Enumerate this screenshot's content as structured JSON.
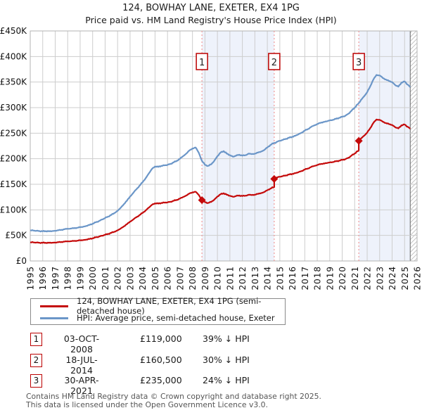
{
  "header": {
    "title": "124, BOWHAY LANE, EXETER, EX4 1PG",
    "subtitle": "Price paid vs. HM Land Registry's House Price Index (HPI)"
  },
  "colors": {
    "price_line": "#c40a0a",
    "hpi_line": "#6b96c8",
    "ownership_band": "#eef2fb",
    "dashed_sale_line": "#f09a9a",
    "marker_box_border": "#bb0000",
    "grid": "#cdcdcd",
    "plot_border": "#b3b3b3",
    "hatch_line": "#c4c4c4",
    "hatch_edge": "#666666",
    "diamond": "#c40a0a"
  },
  "chart_data": {
    "type": "line",
    "title": "Price paid vs. HM Land Registry's House Price Index (HPI)",
    "xlabel": "",
    "ylabel": "",
    "grid": true,
    "x_range": [
      1995,
      2026
    ],
    "y_max_k": 450,
    "y_ticks": [
      {
        "v": 0,
        "label": "£0"
      },
      {
        "v": 50,
        "label": "£50K"
      },
      {
        "v": 100,
        "label": "£100K"
      },
      {
        "v": 150,
        "label": "£150K"
      },
      {
        "v": 200,
        "label": "£200K"
      },
      {
        "v": 250,
        "label": "£250K"
      },
      {
        "v": 300,
        "label": "£300K"
      },
      {
        "v": 350,
        "label": "£350K"
      },
      {
        "v": 400,
        "label": "£400K"
      },
      {
        "v": 450,
        "label": "£450K"
      }
    ],
    "x_ticks": [
      1995,
      1996,
      1997,
      1998,
      1999,
      2000,
      2001,
      2002,
      2003,
      2004,
      2005,
      2006,
      2007,
      2008,
      2009,
      2010,
      2011,
      2012,
      2013,
      2014,
      2015,
      2016,
      2017,
      2018,
      2019,
      2020,
      2021,
      2022,
      2023,
      2024,
      2025,
      2026
    ],
    "unit": "GBP thousands",
    "ownership_bands": [
      {
        "from": 2008.76,
        "to": 2014.55
      },
      {
        "from": 2021.33,
        "to": 2025.45
      }
    ],
    "future_band": {
      "from": 2025.45,
      "to": 2026
    },
    "sales": [
      {
        "label": "1",
        "year": 2008.76,
        "price_k": 119
      },
      {
        "label": "2",
        "year": 2014.55,
        "price_k": 160.5
      },
      {
        "label": "3",
        "year": 2021.33,
        "price_k": 235
      }
    ],
    "series": [
      {
        "name": "HPI: Average price, semi-detached house, Exeter",
        "color": "#6b96c8",
        "points": [
          [
            1995,
            60
          ],
          [
            1995.25,
            59.5
          ],
          [
            1995.5,
            59
          ],
          [
            1995.75,
            58.5
          ],
          [
            1996,
            58
          ],
          [
            1996.25,
            58.5
          ],
          [
            1996.5,
            58
          ],
          [
            1996.75,
            58.5
          ],
          [
            1997,
            59
          ],
          [
            1997.25,
            60
          ],
          [
            1997.5,
            61
          ],
          [
            1997.75,
            62
          ],
          [
            1998,
            63
          ],
          [
            1998.25,
            63.5
          ],
          [
            1998.5,
            64
          ],
          [
            1998.75,
            65
          ],
          [
            1999,
            66
          ],
          [
            1999.25,
            67
          ],
          [
            1999.5,
            68.5
          ],
          [
            1999.75,
            70.5
          ],
          [
            2000,
            73
          ],
          [
            2000.25,
            75.5
          ],
          [
            2000.5,
            78
          ],
          [
            2000.75,
            81
          ],
          [
            2001,
            84
          ],
          [
            2001.25,
            87
          ],
          [
            2001.5,
            90
          ],
          [
            2001.75,
            94
          ],
          [
            2002,
            98
          ],
          [
            2002.25,
            104
          ],
          [
            2002.5,
            111
          ],
          [
            2002.75,
            118
          ],
          [
            2003,
            126
          ],
          [
            2003.25,
            133
          ],
          [
            2003.5,
            140
          ],
          [
            2003.75,
            147
          ],
          [
            2004,
            154
          ],
          [
            2004.25,
            162
          ],
          [
            2004.5,
            171
          ],
          [
            2004.75,
            180
          ],
          [
            2005,
            185
          ],
          [
            2005.25,
            184
          ],
          [
            2005.5,
            186
          ],
          [
            2005.75,
            187
          ],
          [
            2006,
            188
          ],
          [
            2006.25,
            190
          ],
          [
            2006.5,
            193
          ],
          [
            2006.75,
            196
          ],
          [
            2007,
            200
          ],
          [
            2007.25,
            205
          ],
          [
            2007.5,
            210
          ],
          [
            2007.75,
            216
          ],
          [
            2008,
            220
          ],
          [
            2008.25,
            222
          ],
          [
            2008.5,
            212
          ],
          [
            2008.76,
            196
          ],
          [
            2009,
            188
          ],
          [
            2009.25,
            186
          ],
          [
            2009.5,
            189
          ],
          [
            2009.75,
            196
          ],
          [
            2010,
            205
          ],
          [
            2010.25,
            212
          ],
          [
            2010.5,
            215
          ],
          [
            2010.75,
            210
          ],
          [
            2011,
            207
          ],
          [
            2011.25,
            204
          ],
          [
            2011.5,
            206
          ],
          [
            2011.75,
            208
          ],
          [
            2012,
            206
          ],
          [
            2012.25,
            207
          ],
          [
            2012.5,
            210
          ],
          [
            2012.75,
            209
          ],
          [
            2013,
            210
          ],
          [
            2013.25,
            212
          ],
          [
            2013.5,
            214
          ],
          [
            2013.75,
            217
          ],
          [
            2014,
            222
          ],
          [
            2014.25,
            227
          ],
          [
            2014.55,
            231
          ],
          [
            2014.75,
            233
          ],
          [
            2015,
            235
          ],
          [
            2015.25,
            237
          ],
          [
            2015.5,
            239
          ],
          [
            2015.75,
            241
          ],
          [
            2016,
            243
          ],
          [
            2016.25,
            245
          ],
          [
            2016.5,
            248
          ],
          [
            2016.75,
            251
          ],
          [
            2017,
            255
          ],
          [
            2017.25,
            258
          ],
          [
            2017.5,
            262
          ],
          [
            2017.75,
            265
          ],
          [
            2018,
            268
          ],
          [
            2018.25,
            270
          ],
          [
            2018.5,
            272
          ],
          [
            2018.75,
            273
          ],
          [
            2019,
            275
          ],
          [
            2019.25,
            276
          ],
          [
            2019.5,
            278
          ],
          [
            2019.75,
            280
          ],
          [
            2020,
            282
          ],
          [
            2020.25,
            284
          ],
          [
            2020.5,
            288
          ],
          [
            2020.75,
            294
          ],
          [
            2021,
            300
          ],
          [
            2021.33,
            309
          ],
          [
            2021.5,
            315
          ],
          [
            2021.75,
            322
          ],
          [
            2022,
            330
          ],
          [
            2022.25,
            342
          ],
          [
            2022.5,
            355
          ],
          [
            2022.75,
            364
          ],
          [
            2023,
            363
          ],
          [
            2023.25,
            358
          ],
          [
            2023.5,
            355
          ],
          [
            2023.75,
            352
          ],
          [
            2024,
            350
          ],
          [
            2024.25,
            344
          ],
          [
            2024.5,
            341
          ],
          [
            2024.75,
            349
          ],
          [
            2025,
            351
          ],
          [
            2025.25,
            345
          ],
          [
            2025.45,
            340
          ]
        ]
      },
      {
        "name": "124, BOWHAY LANE, EXETER, EX4 1PG (semi-detached house)",
        "color": "#c40a0a",
        "points": [
          [
            1995,
            36.6
          ],
          [
            1995.25,
            36.3
          ],
          [
            1995.5,
            36
          ],
          [
            1995.75,
            35.7
          ],
          [
            1996,
            35.4
          ],
          [
            1996.25,
            35.7
          ],
          [
            1996.5,
            35.4
          ],
          [
            1996.75,
            35.7
          ],
          [
            1997,
            36
          ],
          [
            1997.25,
            36.6
          ],
          [
            1997.5,
            37.2
          ],
          [
            1997.75,
            37.8
          ],
          [
            1998,
            38.4
          ],
          [
            1998.25,
            38.7
          ],
          [
            1998.5,
            39
          ],
          [
            1998.75,
            39.7
          ],
          [
            1999,
            40.3
          ],
          [
            1999.25,
            40.9
          ],
          [
            1999.5,
            41.8
          ],
          [
            1999.75,
            43
          ],
          [
            2000,
            44.5
          ],
          [
            2000.25,
            46.1
          ],
          [
            2000.5,
            47.6
          ],
          [
            2000.75,
            49.4
          ],
          [
            2001,
            51.2
          ],
          [
            2001.25,
            53.1
          ],
          [
            2001.5,
            54.9
          ],
          [
            2001.75,
            57.3
          ],
          [
            2002,
            59.8
          ],
          [
            2002.25,
            63.4
          ],
          [
            2002.5,
            67.7
          ],
          [
            2002.75,
            72
          ],
          [
            2003,
            76.9
          ],
          [
            2003.25,
            81.1
          ],
          [
            2003.5,
            85.4
          ],
          [
            2003.75,
            89.7
          ],
          [
            2004,
            93.9
          ],
          [
            2004.25,
            98.8
          ],
          [
            2004.5,
            104.3
          ],
          [
            2004.75,
            109.8
          ],
          [
            2005,
            112.9
          ],
          [
            2005.25,
            112.2
          ],
          [
            2005.5,
            113.5
          ],
          [
            2005.75,
            114.1
          ],
          [
            2006,
            114.7
          ],
          [
            2006.25,
            115.9
          ],
          [
            2006.5,
            117.7
          ],
          [
            2006.75,
            119.6
          ],
          [
            2007,
            122
          ],
          [
            2007.25,
            125.1
          ],
          [
            2007.5,
            128.1
          ],
          [
            2007.75,
            131.8
          ],
          [
            2008,
            134.2
          ],
          [
            2008.25,
            135.4
          ],
          [
            2008.5,
            129.3
          ],
          [
            2008.76,
            119
          ],
          [
            2009,
            115
          ],
          [
            2009.25,
            113.5
          ],
          [
            2009.5,
            115.5
          ],
          [
            2009.75,
            120
          ],
          [
            2010,
            126
          ],
          [
            2010.25,
            130.5
          ],
          [
            2010.5,
            132.5
          ],
          [
            2010.75,
            129.5
          ],
          [
            2011,
            127.5
          ],
          [
            2011.25,
            125.5
          ],
          [
            2011.5,
            127
          ],
          [
            2011.75,
            128.2
          ],
          [
            2012,
            127
          ],
          [
            2012.25,
            127.7
          ],
          [
            2012.5,
            129.5
          ],
          [
            2012.75,
            128.9
          ],
          [
            2013,
            129.8
          ],
          [
            2013.25,
            131.2
          ],
          [
            2013.5,
            132.7
          ],
          [
            2013.75,
            134.9
          ],
          [
            2014,
            138.3
          ],
          [
            2014.25,
            141.8
          ],
          [
            2014.55,
            144.5
          ],
          [
            2014.55,
            160.5
          ],
          [
            2014.75,
            163.3
          ],
          [
            2015,
            164.7
          ],
          [
            2015.25,
            166.1
          ],
          [
            2015.5,
            167.5
          ],
          [
            2015.75,
            169
          ],
          [
            2016,
            170.3
          ],
          [
            2016.25,
            171.7
          ],
          [
            2016.5,
            173.8
          ],
          [
            2016.75,
            176
          ],
          [
            2017,
            178.8
          ],
          [
            2017.25,
            180.9
          ],
          [
            2017.5,
            183.7
          ],
          [
            2017.75,
            185.8
          ],
          [
            2018,
            187.9
          ],
          [
            2018.25,
            189.3
          ],
          [
            2018.5,
            190.7
          ],
          [
            2018.75,
            191.4
          ],
          [
            2019,
            192.8
          ],
          [
            2019.25,
            193.5
          ],
          [
            2019.5,
            194.9
          ],
          [
            2019.75,
            196.3
          ],
          [
            2020,
            197.7
          ],
          [
            2020.25,
            199.1
          ],
          [
            2020.5,
            201.9
          ],
          [
            2020.75,
            206.1
          ],
          [
            2021,
            210.3
          ],
          [
            2021.33,
            216.6
          ],
          [
            2021.33,
            235
          ],
          [
            2021.5,
            239.6
          ],
          [
            2021.75,
            244.9
          ],
          [
            2022,
            251
          ],
          [
            2022.25,
            260.1
          ],
          [
            2022.5,
            270
          ],
          [
            2022.75,
            276.8
          ],
          [
            2023,
            276.1
          ],
          [
            2023.25,
            272.3
          ],
          [
            2023.5,
            270
          ],
          [
            2023.75,
            267.7
          ],
          [
            2024,
            266.2
          ],
          [
            2024.25,
            261.6
          ],
          [
            2024.5,
            259.3
          ],
          [
            2024.75,
            265.4
          ],
          [
            2025,
            266.9
          ],
          [
            2025.25,
            262.4
          ],
          [
            2025.45,
            258.6
          ]
        ]
      }
    ]
  },
  "legend": {
    "items": [
      {
        "label": "124, BOWHAY LANE, EXETER, EX4 1PG (semi-detached house)",
        "color": "#c40a0a"
      },
      {
        "label": "HPI: Average price, semi-detached house, Exeter",
        "color": "#6b96c8"
      }
    ]
  },
  "transactions": [
    {
      "num": "1",
      "date": "03-OCT-2008",
      "price": "£119,000",
      "vs_hpi": "39% ↓ HPI"
    },
    {
      "num": "2",
      "date": "18-JUL-2014",
      "price": "£160,500",
      "vs_hpi": "30% ↓ HPI"
    },
    {
      "num": "3",
      "date": "30-APR-2021",
      "price": "£235,000",
      "vs_hpi": "24% ↓ HPI"
    }
  ],
  "footer": {
    "line1": "Contains HM Land Registry data © Crown copyright and database right 2025.",
    "line2": "This data is licensed under the Open Government Licence v3.0."
  }
}
